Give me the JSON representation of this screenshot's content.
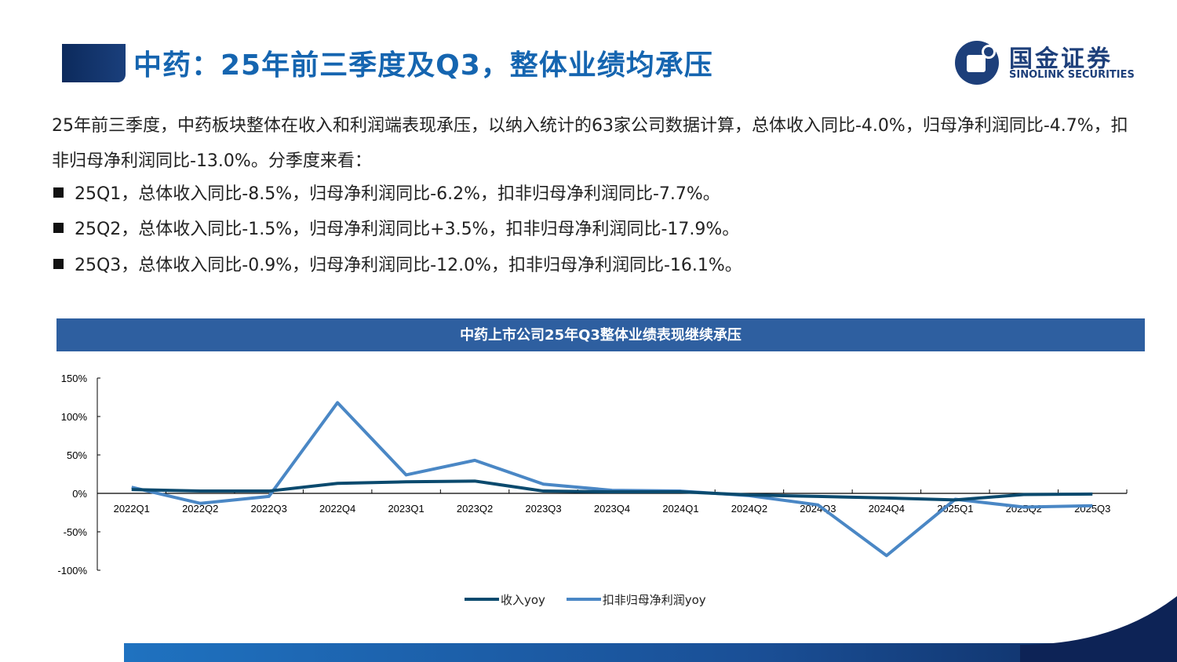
{
  "header": {
    "title": "中药：25年前三季度及Q3，整体业绩均承压",
    "logo_cn": "国金证券",
    "logo_en": "SINOLINK SECURITIES"
  },
  "body": {
    "paragraph": "25年前三季度，中药板块整体在收入和利润端表现承压，以纳入统计的63家公司数据计算，总体收入同比-4.0%，归母净利润同比-4.7%，扣非归母净利润同比-13.0%。分季度来看：",
    "bullets": [
      "25Q1，总体收入同比-8.5%，归母净利润同比-6.2%，扣非归母净利润同比-7.7%。",
      "25Q2，总体收入同比-1.5%，归母净利润同比+3.5%，扣非归母净利润同比-17.9%。",
      "25Q3，总体收入同比-0.9%，归母净利润同比-12.0%，扣非归母净利润同比-16.1%。"
    ]
  },
  "chart_data": {
    "type": "line",
    "title": "中药上市公司25年Q3整体业绩表现继续承压",
    "categories": [
      "2022Q1",
      "2022Q2",
      "2022Q3",
      "2022Q4",
      "2023Q1",
      "2023Q2",
      "2023Q3",
      "2023Q4",
      "2024Q1",
      "2024Q2",
      "2024Q3",
      "2024Q4",
      "2025Q1",
      "2025Q2",
      "2025Q3"
    ],
    "y_ticks": [
      "150%",
      "100%",
      "50%",
      "0%",
      "-50%",
      "-100%"
    ],
    "ylim": [
      -100,
      150
    ],
    "unit": "%",
    "grid": false,
    "legend": "bottom",
    "series": [
      {
        "name": "收入yoy",
        "color": "#0b4a6e",
        "values": [
          5,
          3,
          3,
          13,
          15,
          16,
          3,
          2,
          2,
          -2,
          -4,
          -6,
          -8.5,
          -1.5,
          -0.9
        ]
      },
      {
        "name": "扣非归母净利润yoy",
        "color": "#4a87c5",
        "values": [
          8,
          -13,
          -4,
          118,
          24,
          43,
          12,
          4,
          3,
          -3,
          -15,
          -81,
          -7.7,
          -17.9,
          -16.1
        ]
      }
    ]
  },
  "colors": {
    "title": "#1565b0",
    "chart_header": "#2e5fa0",
    "navy": "#0c2a5c"
  }
}
